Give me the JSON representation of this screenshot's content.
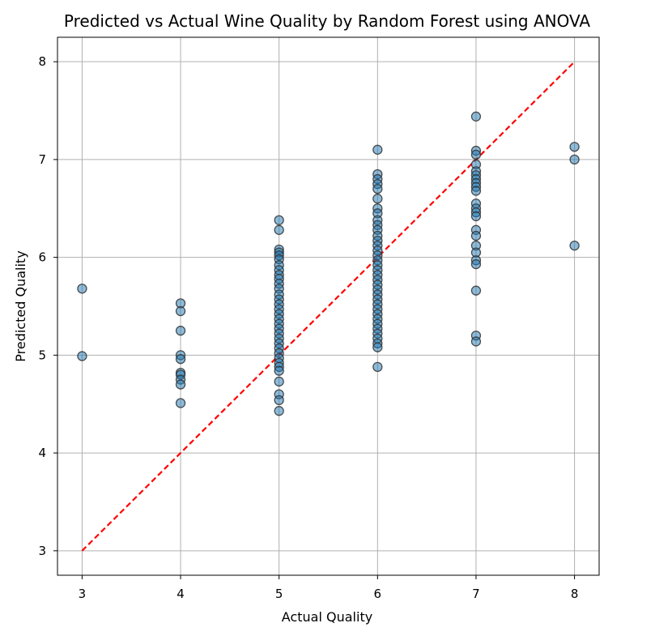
{
  "chart_data": {
    "type": "scatter",
    "title": "Predicted vs Actual Wine Quality by Random Forest using ANOVA",
    "xlabel": "Actual Quality",
    "ylabel": "Predicted Quality",
    "xlim": [
      2.75,
      8.25
    ],
    "ylim": [
      2.75,
      8.25
    ],
    "xticks": [
      "3",
      "4",
      "5",
      "6",
      "7",
      "8"
    ],
    "yticks": [
      "3",
      "4",
      "5",
      "6",
      "7",
      "8"
    ],
    "grid": true,
    "legend": "none",
    "point_color": "#1f77b4",
    "point_edge_color": "#333333",
    "point_alpha": 0.5,
    "reference_line": {
      "from": [
        3,
        3
      ],
      "to": [
        8,
        8
      ],
      "color": "#ff0000",
      "style": "dashed"
    },
    "series": [
      {
        "points": [
          [
            3,
            5.68
          ],
          [
            3,
            4.99
          ],
          [
            4,
            5.53
          ],
          [
            4,
            5.45
          ],
          [
            4,
            5.25
          ],
          [
            4,
            5.0
          ],
          [
            4,
            4.96
          ],
          [
            4,
            4.82
          ],
          [
            4,
            4.8
          ],
          [
            4,
            4.75
          ],
          [
            4,
            4.7
          ],
          [
            4,
            4.51
          ],
          [
            5,
            6.38
          ],
          [
            5,
            6.28
          ],
          [
            5,
            6.08
          ],
          [
            5,
            6.05
          ],
          [
            5,
            6.02
          ],
          [
            5,
            5.98
          ],
          [
            5,
            5.92
          ],
          [
            5,
            5.87
          ],
          [
            5,
            5.82
          ],
          [
            5,
            5.78
          ],
          [
            5,
            5.73
          ],
          [
            5,
            5.68
          ],
          [
            5,
            5.62
          ],
          [
            5,
            5.57
          ],
          [
            5,
            5.52
          ],
          [
            5,
            5.47
          ],
          [
            5,
            5.42
          ],
          [
            5,
            5.37
          ],
          [
            5,
            5.32
          ],
          [
            5,
            5.27
          ],
          [
            5,
            5.22
          ],
          [
            5,
            5.17
          ],
          [
            5,
            5.12
          ],
          [
            5,
            5.07
          ],
          [
            5,
            5.02
          ],
          [
            5,
            4.97
          ],
          [
            5,
            4.92
          ],
          [
            5,
            4.88
          ],
          [
            5,
            4.84
          ],
          [
            5,
            4.73
          ],
          [
            5,
            4.6
          ],
          [
            5,
            4.54
          ],
          [
            5,
            4.43
          ],
          [
            6,
            7.1
          ],
          [
            6,
            6.85
          ],
          [
            6,
            6.8
          ],
          [
            6,
            6.75
          ],
          [
            6,
            6.7
          ],
          [
            6,
            6.6
          ],
          [
            6,
            6.5
          ],
          [
            6,
            6.45
          ],
          [
            6,
            6.38
          ],
          [
            6,
            6.33
          ],
          [
            6,
            6.28
          ],
          [
            6,
            6.22
          ],
          [
            6,
            6.17
          ],
          [
            6,
            6.12
          ],
          [
            6,
            6.07
          ],
          [
            6,
            6.02
          ],
          [
            6,
            5.97
          ],
          [
            6,
            5.92
          ],
          [
            6,
            5.87
          ],
          [
            6,
            5.82
          ],
          [
            6,
            5.77
          ],
          [
            6,
            5.72
          ],
          [
            6,
            5.67
          ],
          [
            6,
            5.62
          ],
          [
            6,
            5.57
          ],
          [
            6,
            5.52
          ],
          [
            6,
            5.47
          ],
          [
            6,
            5.42
          ],
          [
            6,
            5.37
          ],
          [
            6,
            5.32
          ],
          [
            6,
            5.27
          ],
          [
            6,
            5.22
          ],
          [
            6,
            5.17
          ],
          [
            6,
            5.12
          ],
          [
            6,
            5.08
          ],
          [
            6,
            4.88
          ],
          [
            7,
            7.44
          ],
          [
            7,
            7.09
          ],
          [
            7,
            7.05
          ],
          [
            7,
            6.95
          ],
          [
            7,
            6.88
          ],
          [
            7,
            6.84
          ],
          [
            7,
            6.8
          ],
          [
            7,
            6.76
          ],
          [
            7,
            6.72
          ],
          [
            7,
            6.68
          ],
          [
            7,
            6.55
          ],
          [
            7,
            6.5
          ],
          [
            7,
            6.46
          ],
          [
            7,
            6.42
          ],
          [
            7,
            6.28
          ],
          [
            7,
            6.22
          ],
          [
            7,
            6.12
          ],
          [
            7,
            6.05
          ],
          [
            7,
            5.97
          ],
          [
            7,
            5.93
          ],
          [
            7,
            5.66
          ],
          [
            7,
            5.2
          ],
          [
            7,
            5.14
          ],
          [
            8,
            7.13
          ],
          [
            8,
            7.0
          ],
          [
            8,
            6.12
          ]
        ]
      }
    ]
  }
}
